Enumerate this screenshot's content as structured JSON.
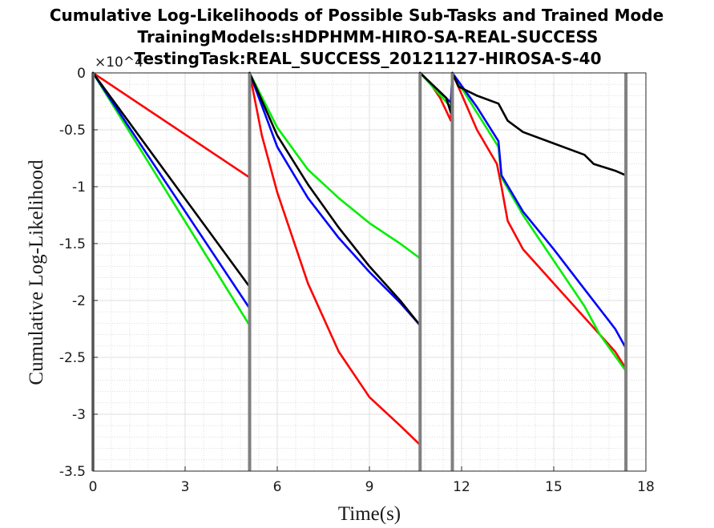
{
  "chart_data": {
    "type": "line",
    "title": [
      "Cumulative Log-Likelihoods of Possible Sub-Tasks and Trained Mode",
      "TrainingModels:sHDPHMM-HIRO-SA-REAL-SUCCESS",
      "TestingTask:REAL_SUCCESS_20121127-HIROSA-S-40"
    ],
    "xlabel": "Time(s)",
    "ylabel": "Cumulative Log-Likelihood",
    "y_exponent": "×10^4",
    "xlim": [
      0,
      18
    ],
    "ylim": [
      -3.5,
      0
    ],
    "xticks": [
      "0",
      "3",
      "6",
      "9",
      "12",
      "15",
      "18"
    ],
    "yticks": [
      "0",
      "-0.5",
      "-1",
      "-1.5",
      "-2",
      "-2.5",
      "-3",
      "-3.5"
    ],
    "xtick_values": [
      0,
      3,
      6,
      9,
      12,
      15,
      18
    ],
    "ytick_values": [
      0,
      -0.5,
      -1,
      -1.5,
      -2,
      -2.5,
      -3,
      -3.5
    ],
    "grid": true,
    "minor_grid": true,
    "boundaries": [
      0,
      5.1,
      10.65,
      11.7,
      17.35
    ],
    "series": [
      {
        "color": "#ff0000",
        "segments": [
          [
            [
              0,
              0
            ],
            [
              5.1,
              -0.92
            ]
          ],
          [
            [
              5.1,
              0
            ],
            [
              5.5,
              -0.55
            ],
            [
              6,
              -1.05
            ],
            [
              7,
              -1.85
            ],
            [
              8,
              -2.45
            ],
            [
              9,
              -2.85
            ],
            [
              10,
              -3.1
            ],
            [
              10.65,
              -3.27
            ]
          ],
          [
            [
              10.65,
              0
            ],
            [
              11.0,
              -0.1
            ],
            [
              11.3,
              -0.22
            ],
            [
              11.65,
              -0.42
            ]
          ],
          [
            [
              11.7,
              0
            ],
            [
              12.5,
              -0.5
            ],
            [
              13.15,
              -0.8
            ],
            [
              13.3,
              -1.0
            ],
            [
              13.5,
              -1.3
            ],
            [
              14,
              -1.55
            ],
            [
              15,
              -1.85
            ],
            [
              16,
              -2.15
            ],
            [
              17,
              -2.45
            ],
            [
              17.35,
              -2.6
            ]
          ]
        ]
      },
      {
        "color": "#00ee00",
        "segments": [
          [
            [
              0,
              0
            ],
            [
              5.1,
              -2.22
            ]
          ],
          [
            [
              5.1,
              0
            ],
            [
              6,
              -0.48
            ],
            [
              7,
              -0.85
            ],
            [
              8,
              -1.1
            ],
            [
              9,
              -1.32
            ],
            [
              10,
              -1.5
            ],
            [
              10.65,
              -1.63
            ]
          ],
          [
            [
              10.65,
              0
            ],
            [
              11.65,
              -0.3
            ]
          ],
          [
            [
              11.7,
              0
            ],
            [
              12.5,
              -0.35
            ],
            [
              13.2,
              -0.65
            ],
            [
              13.3,
              -0.92
            ],
            [
              14,
              -1.25
            ],
            [
              15,
              -1.65
            ],
            [
              16,
              -2.05
            ],
            [
              16.5,
              -2.3
            ],
            [
              17.35,
              -2.62
            ]
          ]
        ]
      },
      {
        "color": "#0000ff",
        "segments": [
          [
            [
              0,
              0
            ],
            [
              5.1,
              -2.07
            ]
          ],
          [
            [
              5.1,
              0
            ],
            [
              6,
              -0.65
            ],
            [
              7,
              -1.1
            ],
            [
              8,
              -1.45
            ],
            [
              9,
              -1.75
            ],
            [
              10,
              -2.02
            ],
            [
              10.65,
              -2.22
            ]
          ],
          [
            [
              10.65,
              0
            ],
            [
              11.65,
              -0.26
            ]
          ],
          [
            [
              11.7,
              0
            ],
            [
              12.5,
              -0.3
            ],
            [
              13.2,
              -0.6
            ],
            [
              13.3,
              -0.9
            ],
            [
              14,
              -1.22
            ],
            [
              15,
              -1.55
            ],
            [
              16,
              -1.9
            ],
            [
              17,
              -2.25
            ],
            [
              17.35,
              -2.42
            ]
          ]
        ]
      },
      {
        "color": "#000000",
        "segments": [
          [
            [
              0,
              0
            ],
            [
              5.1,
              -1.88
            ]
          ],
          [
            [
              5.1,
              0
            ],
            [
              6,
              -0.55
            ],
            [
              7,
              -0.98
            ],
            [
              8,
              -1.36
            ],
            [
              9,
              -1.7
            ],
            [
              10,
              -2.0
            ],
            [
              10.65,
              -2.22
            ]
          ],
          [
            [
              10.65,
              0
            ],
            [
              11.5,
              -0.22
            ],
            [
              11.65,
              -0.35
            ]
          ],
          [
            [
              11.7,
              0
            ],
            [
              11.9,
              -0.12
            ],
            [
              12.5,
              -0.2
            ],
            [
              13.2,
              -0.27
            ],
            [
              13.5,
              -0.42
            ],
            [
              14,
              -0.52
            ],
            [
              15,
              -0.62
            ],
            [
              16,
              -0.72
            ],
            [
              16.3,
              -0.8
            ],
            [
              17,
              -0.86
            ],
            [
              17.35,
              -0.9
            ]
          ]
        ]
      }
    ]
  },
  "colors": {
    "boundary": "#808080",
    "grid": "#d9d9d9",
    "minor_grid": "#c8c8c8",
    "axes": "#262626"
  }
}
